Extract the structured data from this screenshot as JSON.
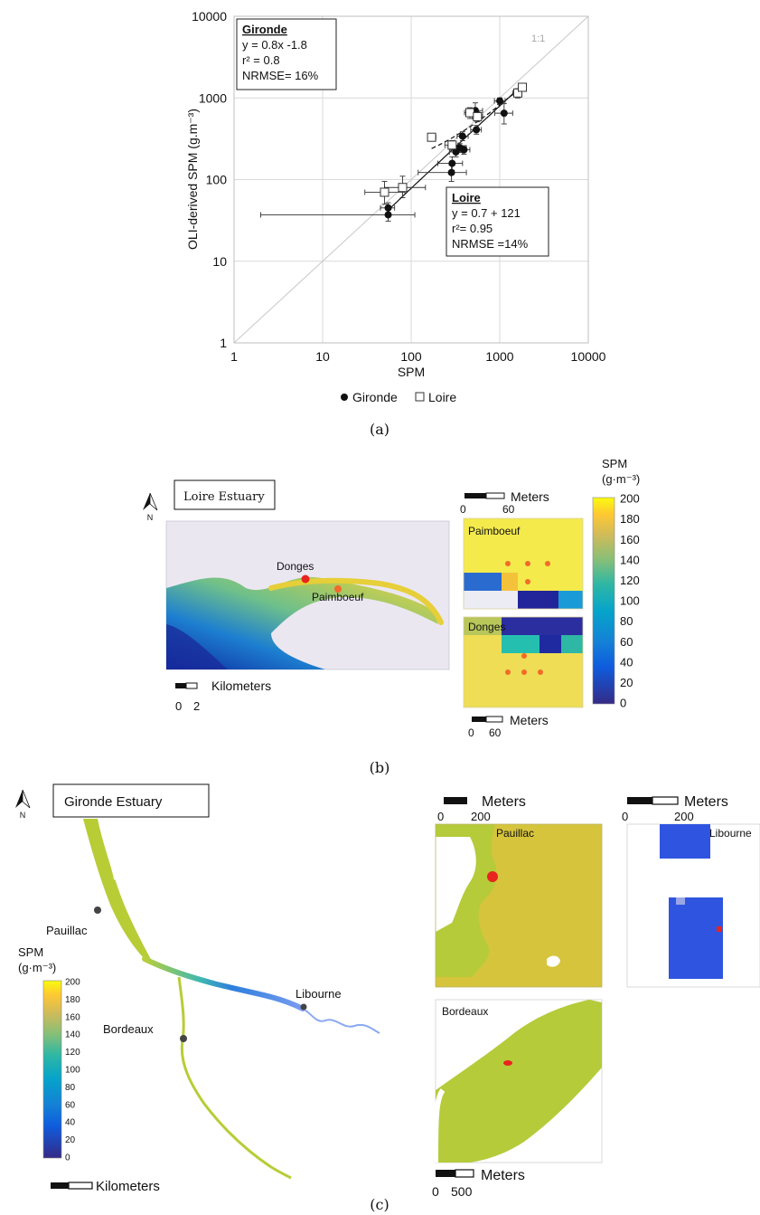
{
  "panel_a": {
    "label": "(a)",
    "chart_data": {
      "type": "scatter",
      "xscale": "log",
      "yscale": "log",
      "xlabel": "SPM",
      "ylabel": "OLI-derived SPM (g.m⁻³)",
      "xlim": [
        1,
        10000
      ],
      "ylim": [
        1,
        10000
      ],
      "x_ticks": [
        "1",
        "10",
        "100",
        "1000",
        "10000"
      ],
      "y_ticks": [
        "1",
        "10",
        "100",
        "1000",
        "10000"
      ],
      "grid": true,
      "identity_label": "1:1",
      "legend": {
        "placement": "bottom",
        "entries": [
          "Gironde",
          "Loire"
        ]
      },
      "series": [
        {
          "name": "Gironde",
          "marker": "filled-circle",
          "points": [
            {
              "x": 55,
              "y": 37,
              "xerr": [
                2,
                110
              ],
              "yerr": [
                31,
                44
              ]
            },
            {
              "x": 55,
              "y": 45,
              "xerr": [
                45,
                65
              ],
              "yerr": [
                38,
                52
              ]
            },
            {
              "x": 285,
              "y": 122,
              "xerr": [
                120,
                420
              ],
              "yerr": [
                95,
                150
              ]
            },
            {
              "x": 290,
              "y": 158,
              "xerr": [
                200,
                380
              ],
              "yerr": [
                130,
                190
              ]
            },
            {
              "x": 320,
              "y": 218,
              "xerr": [
                270,
                380
              ],
              "yerr": [
                190,
                250
              ]
            },
            {
              "x": 355,
              "y": 245,
              "xerr": [
                300,
                420
              ],
              "yerr": [
                215,
                275
              ]
            },
            {
              "x": 395,
              "y": 232,
              "xerr": [
                340,
                460
              ],
              "yerr": [
                205,
                260
              ]
            },
            {
              "x": 380,
              "y": 340,
              "xerr": [
                330,
                440
              ],
              "yerr": [
                300,
                385
              ]
            },
            {
              "x": 545,
              "y": 408,
              "xerr": [
                470,
                620
              ],
              "yerr": [
                360,
                460
              ]
            },
            {
              "x": 530,
              "y": 700,
              "xerr": [
                430,
                640
              ],
              "yerr": [
                560,
                870
              ]
            },
            {
              "x": 1000,
              "y": 920,
              "xerr": [
                870,
                1150
              ],
              "yerr": [
                830,
                1000
              ]
            },
            {
              "x": 1120,
              "y": 650,
              "xerr": [
                880,
                1400
              ],
              "yerr": [
                480,
                850
              ]
            }
          ]
        },
        {
          "name": "Loire",
          "marker": "open-square",
          "points": [
            {
              "x": 50,
              "y": 70,
              "xerr": [
                30,
                85
              ],
              "yerr": [
                50,
                95
              ]
            },
            {
              "x": 80,
              "y": 80,
              "xerr": [
                50,
                145
              ],
              "yerr": [
                60,
                110
              ]
            },
            {
              "x": 170,
              "y": 330,
              "xerr": [
                155,
                190
              ],
              "yerr": [
                300,
                360
              ]
            },
            {
              "x": 290,
              "y": 265,
              "xerr": [
                240,
                340
              ],
              "yerr": [
                230,
                300
              ]
            },
            {
              "x": 460,
              "y": 660,
              "xerr": [
                400,
                520
              ],
              "yerr": [
                560,
                760
              ]
            },
            {
              "x": 560,
              "y": 590,
              "xerr": [
                490,
                640
              ],
              "yerr": [
                510,
                680
              ]
            },
            {
              "x": 1600,
              "y": 1150,
              "xerr": [
                1400,
                1750
              ],
              "yerr": [
                1000,
                1300
              ]
            },
            {
              "x": 1800,
              "y": 1350,
              "xerr": [
                1650,
                1950
              ],
              "yerr": [
                1250,
                1450
              ]
            }
          ]
        }
      ],
      "fits": [
        {
          "series": "Gironde",
          "style": "solid",
          "slope": 0.8,
          "intercept": -1.8,
          "x_range": [
            55,
            1800
          ]
        },
        {
          "series": "Loire",
          "style": "dashed",
          "slope": 0.7,
          "intercept": 121,
          "x_range": [
            170,
            1800
          ]
        }
      ],
      "annotations": [
        {
          "title": "Gironde",
          "lines": [
            "y = 0.8x -1.8",
            "r² = 0.8",
            "NRMSE= 16%"
          ]
        },
        {
          "title": "Loire",
          "lines": [
            "y = 0.7 + 121",
            "r²= 0.95",
            "NRMSE =14%"
          ]
        }
      ]
    }
  },
  "panel_b": {
    "label": "(b)",
    "title": "Loire Estuary",
    "north": "N",
    "sites": [
      "Donges",
      "Paimboeuf"
    ],
    "insets": [
      "Paimboeuf",
      "Donges"
    ],
    "scale_main": {
      "unit": "Kilometers",
      "ticks": [
        "0",
        "2"
      ]
    },
    "scale_inset_top": {
      "unit": "Meters",
      "ticks": [
        "0",
        "60"
      ]
    },
    "scale_inset_bottom": {
      "unit": "Meters",
      "ticks": [
        "0",
        "60"
      ]
    },
    "colorbar": {
      "title": "SPM",
      "unit": "(g·m⁻³)",
      "ticks": [
        "200",
        "180",
        "160",
        "140",
        "120",
        "100",
        "80",
        "60",
        "40",
        "20",
        "0"
      ]
    }
  },
  "panel_c": {
    "label": "(c)",
    "title": "Gironde Estuary",
    "north": "N",
    "sites": [
      "Pauillac",
      "Libourne",
      "Bordeaux"
    ],
    "insets": [
      "Pauillac",
      "Libourne",
      "Bordeaux"
    ],
    "scale_main": {
      "unit": "Kilometers"
    },
    "scale_pauillac": {
      "unit": "Meters",
      "ticks": [
        "0",
        "200"
      ]
    },
    "scale_libourne": {
      "unit": "Meters",
      "ticks": [
        "0",
        "200"
      ]
    },
    "scale_bordeaux": {
      "unit": "Meters",
      "ticks": [
        "0",
        "500"
      ]
    },
    "colorbar": {
      "title": "SPM",
      "unit": "(g·m⁻³)",
      "ticks": [
        "200",
        "180",
        "160",
        "140",
        "120",
        "100",
        "80",
        "60",
        "40",
        "20",
        "0"
      ]
    }
  },
  "colors": {
    "viridis": [
      "#440154",
      "#3b518b",
      "#2c718e",
      "#21918c",
      "#27ad81",
      "#5cc863",
      "#aadc32",
      "#fde725"
    ],
    "parula": [
      "#352a87",
      "#0f5cdd",
      "#1481d6",
      "#06a4ca",
      "#2eb7a4",
      "#87bf77",
      "#d1bb59",
      "#fec832",
      "#f9fb0e"
    ],
    "marker_red": "#e8241f",
    "marker_orange": "#f26b2a"
  }
}
